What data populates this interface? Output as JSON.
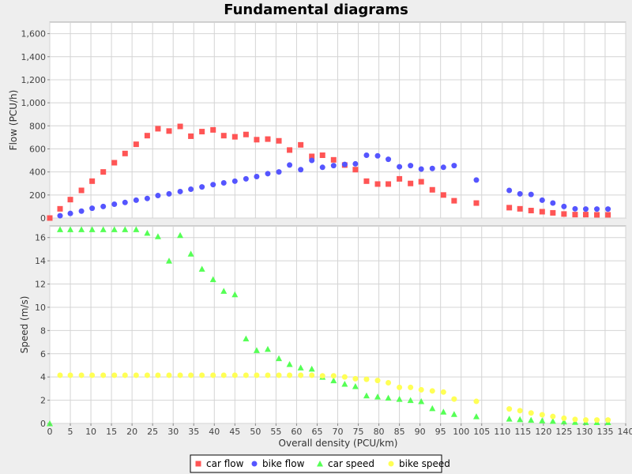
{
  "chart_data": {
    "type": "scatter",
    "title": "Fundamental diagrams",
    "xlabel": "Overall density (PCU/km)",
    "x_ticks": [
      0,
      5,
      10,
      15,
      20,
      25,
      30,
      35,
      40,
      45,
      50,
      55,
      60,
      65,
      70,
      75,
      80,
      85,
      90,
      95,
      100,
      105,
      110,
      115,
      120,
      125,
      130,
      135,
      140
    ],
    "xlim": [
      0,
      140
    ],
    "grid": true,
    "legend_position": "bottom-center",
    "panels": [
      {
        "ylabel": "Flow (PCU/h)",
        "ylim": [
          0,
          1700
        ],
        "y_ticks": [
          0,
          200,
          400,
          600,
          800,
          1000,
          1200,
          1400,
          1600
        ],
        "y_tick_labels": [
          "0",
          "200",
          "400",
          "600",
          "800",
          "1,000",
          "1,200",
          "1,400",
          "1,600"
        ],
        "series": [
          {
            "name": "car flow",
            "color": "#ff5555",
            "marker": "square",
            "points": [
              [
                0,
                0
              ],
              [
                2.5,
                80
              ],
              [
                5,
                160
              ],
              [
                7.7,
                240
              ],
              [
                10.3,
                320
              ],
              [
                13,
                400
              ],
              [
                15.7,
                480
              ],
              [
                18.3,
                560
              ],
              [
                21,
                640
              ],
              [
                23.7,
                715
              ],
              [
                26.3,
                775
              ],
              [
                29,
                755
              ],
              [
                31.7,
                795
              ],
              [
                34.3,
                710
              ],
              [
                37,
                750
              ],
              [
                39.7,
                765
              ],
              [
                42.3,
                715
              ],
              [
                45,
                705
              ],
              [
                47.7,
                725
              ],
              [
                50.3,
                680
              ],
              [
                53,
                685
              ],
              [
                55.7,
                670
              ],
              [
                58.3,
                590
              ],
              [
                61,
                635
              ],
              [
                63.7,
                535
              ],
              [
                66.3,
                545
              ],
              [
                69,
                505
              ],
              [
                71.7,
                460
              ],
              [
                74.3,
                420
              ],
              [
                77,
                320
              ],
              [
                79.7,
                295
              ],
              [
                82.3,
                295
              ],
              [
                85,
                340
              ],
              [
                87.7,
                300
              ],
              [
                90.3,
                315
              ],
              [
                93,
                245
              ],
              [
                95.7,
                200
              ],
              [
                98.3,
                150
              ],
              [
                103.7,
                130
              ],
              [
                111.7,
                90
              ],
              [
                114.3,
                80
              ],
              [
                117,
                65
              ],
              [
                119.7,
                55
              ],
              [
                122.3,
                45
              ],
              [
                125,
                35
              ],
              [
                127.7,
                30
              ],
              [
                130.3,
                30
              ],
              [
                133,
                28
              ],
              [
                135.7,
                28
              ]
            ]
          },
          {
            "name": "bike flow",
            "color": "#5555ff",
            "marker": "circle",
            "points": [
              [
                2.5,
                20
              ],
              [
                5,
                40
              ],
              [
                7.7,
                60
              ],
              [
                10.3,
                85
              ],
              [
                13,
                100
              ],
              [
                15.7,
                120
              ],
              [
                18.3,
                135
              ],
              [
                21,
                155
              ],
              [
                23.7,
                170
              ],
              [
                26.3,
                195
              ],
              [
                29,
                210
              ],
              [
                31.7,
                230
              ],
              [
                34.3,
                250
              ],
              [
                37,
                270
              ],
              [
                39.7,
                290
              ],
              [
                42.3,
                305
              ],
              [
                45,
                320
              ],
              [
                47.7,
                340
              ],
              [
                50.3,
                360
              ],
              [
                53,
                385
              ],
              [
                55.7,
                400
              ],
              [
                58.3,
                460
              ],
              [
                61,
                420
              ],
              [
                63.7,
                500
              ],
              [
                66.3,
                440
              ],
              [
                69,
                455
              ],
              [
                71.7,
                465
              ],
              [
                74.3,
                470
              ],
              [
                77,
                545
              ],
              [
                79.7,
                540
              ],
              [
                82.3,
                510
              ],
              [
                85,
                445
              ],
              [
                87.7,
                455
              ],
              [
                90.3,
                425
              ],
              [
                93,
                430
              ],
              [
                95.7,
                440
              ],
              [
                98.3,
                455
              ],
              [
                103.7,
                330
              ],
              [
                111.7,
                240
              ],
              [
                114.3,
                210
              ],
              [
                117,
                205
              ],
              [
                119.7,
                155
              ],
              [
                122.3,
                130
              ],
              [
                125,
                100
              ],
              [
                127.7,
                80
              ],
              [
                130.3,
                78
              ],
              [
                133,
                78
              ],
              [
                135.7,
                78
              ]
            ]
          }
        ]
      },
      {
        "ylabel": "Speed (m/s)",
        "ylim": [
          0,
          17
        ],
        "y_ticks": [
          0,
          2,
          4,
          6,
          8,
          10,
          12,
          14,
          16
        ],
        "y_tick_labels": [
          "0",
          "2",
          "4",
          "6",
          "8",
          "10",
          "12",
          "14",
          "16"
        ],
        "series": [
          {
            "name": "car speed",
            "color": "#55ff55",
            "marker": "triangle",
            "points": [
              [
                0,
                0
              ],
              [
                2.5,
                16.7
              ],
              [
                5,
                16.7
              ],
              [
                7.7,
                16.7
              ],
              [
                10.3,
                16.7
              ],
              [
                13,
                16.7
              ],
              [
                15.7,
                16.7
              ],
              [
                18.3,
                16.7
              ],
              [
                21,
                16.7
              ],
              [
                23.7,
                16.4
              ],
              [
                26.3,
                16.1
              ],
              [
                29,
                14.0
              ],
              [
                31.7,
                16.2
              ],
              [
                34.3,
                14.6
              ],
              [
                37,
                13.3
              ],
              [
                39.7,
                12.4
              ],
              [
                42.3,
                11.4
              ],
              [
                45,
                11.1
              ],
              [
                47.7,
                7.3
              ],
              [
                50.3,
                6.3
              ],
              [
                53,
                6.4
              ],
              [
                55.7,
                5.6
              ],
              [
                58.3,
                5.1
              ],
              [
                61,
                4.8
              ],
              [
                63.7,
                4.7
              ],
              [
                66.3,
                4.0
              ],
              [
                69,
                3.7
              ],
              [
                71.7,
                3.4
              ],
              [
                74.3,
                3.2
              ],
              [
                77,
                2.4
              ],
              [
                79.7,
                2.3
              ],
              [
                82.3,
                2.2
              ],
              [
                85,
                2.1
              ],
              [
                87.7,
                2.0
              ],
              [
                90.3,
                1.9
              ],
              [
                93,
                1.3
              ],
              [
                95.7,
                1.0
              ],
              [
                98.3,
                0.8
              ],
              [
                103.7,
                0.6
              ],
              [
                111.7,
                0.4
              ],
              [
                114.3,
                0.35
              ],
              [
                117,
                0.3
              ],
              [
                119.7,
                0.25
              ],
              [
                122.3,
                0.2
              ],
              [
                125,
                0.15
              ],
              [
                127.7,
                0.12
              ],
              [
                130.3,
                0.1
              ],
              [
                133,
                0.1
              ],
              [
                135.7,
                0.1
              ]
            ]
          },
          {
            "name": "bike speed",
            "color": "#ffff55",
            "marker": "circle",
            "points": [
              [
                2.5,
                4.15
              ],
              [
                5,
                4.15
              ],
              [
                7.7,
                4.15
              ],
              [
                10.3,
                4.15
              ],
              [
                13,
                4.15
              ],
              [
                15.7,
                4.15
              ],
              [
                18.3,
                4.15
              ],
              [
                21,
                4.15
              ],
              [
                23.7,
                4.15
              ],
              [
                26.3,
                4.15
              ],
              [
                29,
                4.15
              ],
              [
                31.7,
                4.15
              ],
              [
                34.3,
                4.15
              ],
              [
                37,
                4.15
              ],
              [
                39.7,
                4.15
              ],
              [
                42.3,
                4.15
              ],
              [
                45,
                4.15
              ],
              [
                47.7,
                4.15
              ],
              [
                50.3,
                4.15
              ],
              [
                53,
                4.15
              ],
              [
                55.7,
                4.15
              ],
              [
                58.3,
                4.15
              ],
              [
                61,
                4.15
              ],
              [
                63.7,
                4.15
              ],
              [
                66.3,
                4.1
              ],
              [
                69,
                4.1
              ],
              [
                71.7,
                4.0
              ],
              [
                74.3,
                3.85
              ],
              [
                77,
                3.8
              ],
              [
                79.7,
                3.7
              ],
              [
                82.3,
                3.5
              ],
              [
                85,
                3.1
              ],
              [
                87.7,
                3.1
              ],
              [
                90.3,
                2.9
              ],
              [
                93,
                2.8
              ],
              [
                95.7,
                2.7
              ],
              [
                98.3,
                2.1
              ],
              [
                103.7,
                1.9
              ],
              [
                111.7,
                1.25
              ],
              [
                114.3,
                1.1
              ],
              [
                117,
                0.9
              ],
              [
                119.7,
                0.75
              ],
              [
                122.3,
                0.6
              ],
              [
                125,
                0.45
              ],
              [
                127.7,
                0.35
              ],
              [
                130.3,
                0.3
              ],
              [
                133,
                0.3
              ],
              [
                135.7,
                0.3
              ]
            ]
          }
        ]
      }
    ],
    "legend": [
      {
        "label": "car flow",
        "color": "#ff5555",
        "marker": "square"
      },
      {
        "label": "bike flow",
        "color": "#5555ff",
        "marker": "circle"
      },
      {
        "label": "car speed",
        "color": "#55ff55",
        "marker": "triangle"
      },
      {
        "label": "bike speed",
        "color": "#ffff55",
        "marker": "circle"
      }
    ]
  }
}
